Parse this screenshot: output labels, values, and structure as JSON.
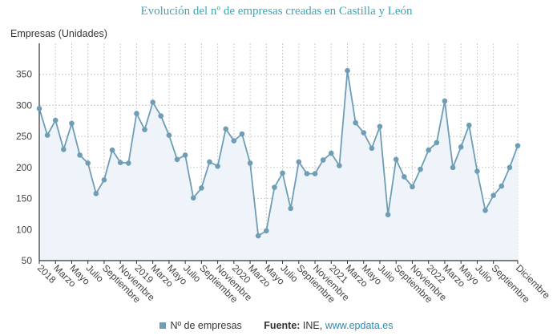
{
  "chart_data": {
    "type": "area",
    "title": "Evolución del nº de empresas creadas en Castilla y León",
    "ylabel": "Empresas (Unidades)",
    "xlabel": "",
    "ylim": [
      50,
      400
    ],
    "yticks": [
      50,
      100,
      150,
      200,
      250,
      300,
      350
    ],
    "grid": true,
    "legend_position": "bottom",
    "x_tick_labels": [
      "2018",
      "Marzo",
      "Mayo",
      "Julio",
      "Septiembre",
      "Noviembre",
      "2019",
      "Marzo",
      "Mayo",
      "Julio",
      "Septiembre",
      "Noviembre",
      "2020",
      "Marzo",
      "Mayo",
      "Julio",
      "Septiembre",
      "Noviembre",
      "2021",
      "Marzo",
      "Mayo",
      "Julio",
      "Septiembre",
      "Noviembre",
      "2022",
      "Marzo",
      "Mayo",
      "Julio",
      "Septiembre",
      "Diciembre"
    ],
    "series": [
      {
        "name": "Nº de empresas",
        "color": "#6e9db5",
        "values": [
          295,
          252,
          276,
          229,
          271,
          220,
          207,
          158,
          180,
          228,
          208,
          207,
          287,
          261,
          305,
          283,
          252,
          213,
          220,
          151,
          167,
          209,
          202,
          262,
          243,
          254,
          207,
          90,
          98,
          168,
          191,
          134,
          209,
          190,
          190,
          212,
          223,
          203,
          356,
          272,
          256,
          231,
          266,
          124,
          213,
          185,
          169,
          197,
          228,
          240,
          307,
          200,
          233,
          268,
          194,
          131,
          155,
          170,
          200,
          235
        ]
      }
    ]
  },
  "legend": {
    "series_label": "Nº de empresas",
    "source_label": "Fuente:",
    "source_text": "INE,",
    "source_link": "www.epdata.es"
  }
}
